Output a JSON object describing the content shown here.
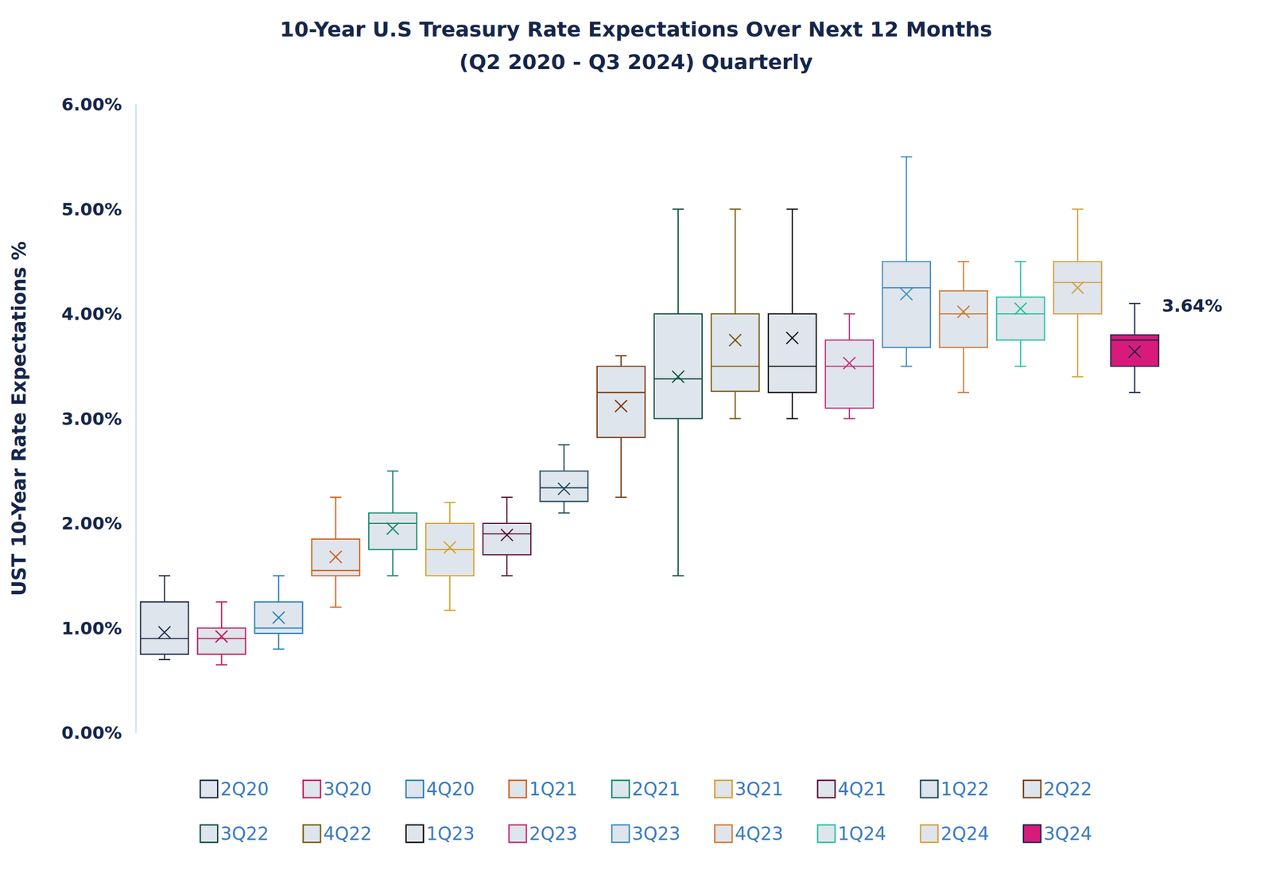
{
  "chart_data": {
    "type": "boxplot",
    "title": "10-Year U.S Treasury Rate Expectations Over Next 12 Months",
    "subtitle": "(Q2 2020 - Q3 2024) Quarterly",
    "y_label": "UST 10-Year Rate Expectations %",
    "categories": [
      "2Q20",
      "3Q20",
      "4Q20",
      "1Q21",
      "2Q21",
      "3Q21",
      "4Q21",
      "1Q22",
      "2Q22",
      "3Q22",
      "4Q22",
      "1Q23",
      "2Q23",
      "3Q23",
      "4Q23",
      "1Q24",
      "2Q24",
      "3Q24"
    ],
    "series": [
      {
        "name": "2Q20",
        "color": "#1b2a47",
        "min": 0.7,
        "q1": 0.75,
        "median": 0.9,
        "q3": 1.25,
        "max": 1.5,
        "mean": 0.96
      },
      {
        "name": "3Q20",
        "color": "#c2185b",
        "min": 0.65,
        "q1": 0.75,
        "median": 0.9,
        "q3": 1.0,
        "max": 1.25,
        "mean": 0.92
      },
      {
        "name": "4Q20",
        "color": "#2a7fb8",
        "min": 0.8,
        "q1": 0.95,
        "median": 1.0,
        "q3": 1.25,
        "max": 1.5,
        "mean": 1.1
      },
      {
        "name": "1Q21",
        "color": "#d2601a",
        "min": 1.2,
        "q1": 1.5,
        "median": 1.55,
        "q3": 1.85,
        "max": 2.25,
        "mean": 1.68
      },
      {
        "name": "2Q21",
        "color": "#138a6c",
        "min": 1.5,
        "q1": 1.75,
        "median": 2.0,
        "q3": 2.1,
        "max": 2.5,
        "mean": 1.95
      },
      {
        "name": "3Q21",
        "color": "#d4a12a",
        "min": 1.17,
        "q1": 1.5,
        "median": 1.75,
        "q3": 2.0,
        "max": 2.2,
        "mean": 1.77
      },
      {
        "name": "4Q21",
        "color": "#5c1136",
        "min": 1.5,
        "q1": 1.7,
        "median": 1.9,
        "q3": 2.0,
        "max": 2.25,
        "mean": 1.89
      },
      {
        "name": "1Q22",
        "color": "#1e4a5e",
        "min": 2.1,
        "q1": 2.21,
        "median": 2.34,
        "q3": 2.5,
        "max": 2.75,
        "mean": 2.33
      },
      {
        "name": "2Q22",
        "color": "#7a3a10",
        "min": 2.25,
        "q1": 2.82,
        "median": 3.25,
        "q3": 3.5,
        "max": 3.6,
        "mean": 3.12
      },
      {
        "name": "3Q22",
        "color": "#0f4d40",
        "min": 1.5,
        "q1": 3.0,
        "median": 3.38,
        "q3": 4.0,
        "max": 5.0,
        "mean": 3.4
      },
      {
        "name": "4Q22",
        "color": "#7a5a10",
        "min": 3.0,
        "q1": 3.26,
        "median": 3.5,
        "q3": 4.0,
        "max": 5.0,
        "mean": 3.75
      },
      {
        "name": "1Q23",
        "color": "#111111",
        "min": 3.0,
        "q1": 3.25,
        "median": 3.5,
        "q3": 4.0,
        "max": 5.0,
        "mean": 3.77
      },
      {
        "name": "2Q23",
        "color": "#c2307a",
        "min": 3.0,
        "q1": 3.1,
        "median": 3.5,
        "q3": 3.75,
        "max": 4.0,
        "mean": 3.53
      },
      {
        "name": "3Q23",
        "color": "#3a8cc4",
        "min": 3.5,
        "q1": 3.68,
        "median": 4.25,
        "q3": 4.5,
        "max": 5.5,
        "mean": 4.19
      },
      {
        "name": "4Q23",
        "color": "#d07a36",
        "min": 3.25,
        "q1": 3.68,
        "median": 4.0,
        "q3": 4.22,
        "max": 4.5,
        "mean": 4.02
      },
      {
        "name": "1Q24",
        "color": "#25c2a0",
        "min": 3.5,
        "q1": 3.75,
        "median": 4.0,
        "q3": 4.16,
        "max": 4.5,
        "mean": 4.05
      },
      {
        "name": "2Q24",
        "color": "#d4a040",
        "min": 3.4,
        "q1": 4.0,
        "median": 4.3,
        "q3": 4.5,
        "max": 5.0,
        "mean": 4.25
      },
      {
        "name": "3Q24",
        "color": "#d81b7a",
        "min": 3.25,
        "q1": 3.5,
        "median": 3.75,
        "q3": 3.8,
        "max": 4.1,
        "mean": 3.64
      }
    ],
    "ylim": [
      0,
      6
    ],
    "yticks": [
      {
        "value": 0,
        "label": "0.00%"
      },
      {
        "value": 1,
        "label": "1.00%"
      },
      {
        "value": 2,
        "label": "2.00%"
      },
      {
        "value": 3,
        "label": "3.00%"
      },
      {
        "value": 4,
        "label": "4.00%"
      },
      {
        "value": 5,
        "label": "5.00%"
      },
      {
        "value": 6,
        "label": "6.00%"
      }
    ],
    "grid": false,
    "legend": "bottom",
    "tick_labels": "y",
    "annotations": [
      {
        "series": "3Q24",
        "text": "3.64%",
        "value": 3.64
      }
    ]
  }
}
